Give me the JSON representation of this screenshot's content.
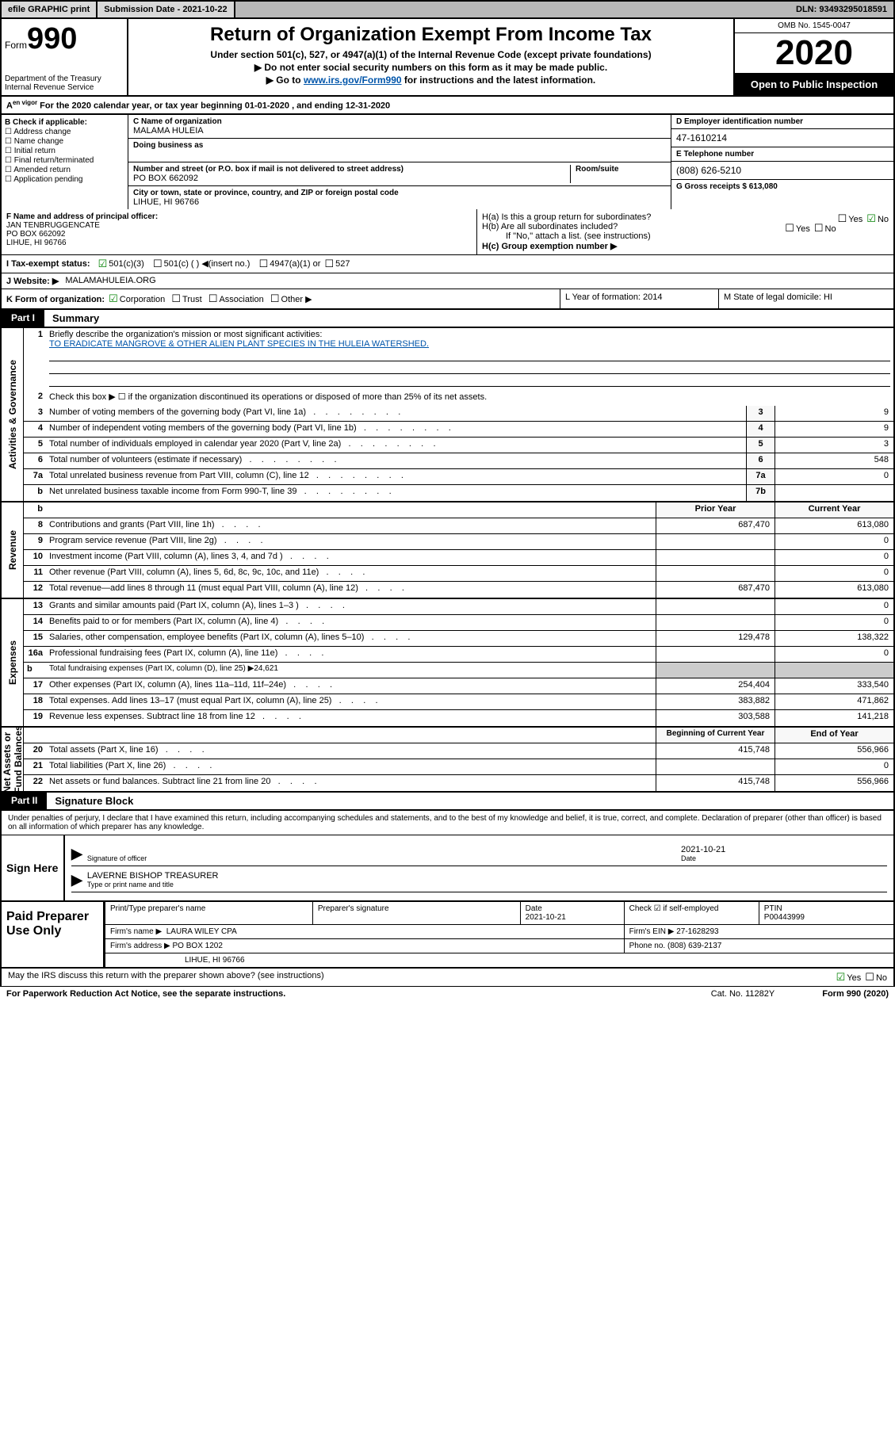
{
  "topbar": {
    "efile": "efile GRAPHIC print",
    "sub_label": "Submission Date - 2021-10-22",
    "dln": "DLN: 93493295018591"
  },
  "header": {
    "form_prefix": "Form",
    "form_num": "990",
    "dept": "Department of the Treasury\nInternal Revenue Service",
    "title": "Return of Organization Exempt From Income Tax",
    "subtitle": "Under section 501(c), 527, or 4947(a)(1) of the Internal Revenue Code (except private foundations)",
    "note1": "Do not enter social security numbers on this form as it may be made public.",
    "note2_pre": "Go to ",
    "note2_link": "www.irs.gov/Form990",
    "note2_post": " for instructions and the latest information.",
    "omb": "OMB No. 1545-0047",
    "year": "2020",
    "inspection": "Open to Public Inspection"
  },
  "tax_year_line": "For the 2020 calendar year, or tax year beginning 01-01-2020   , and ending 12-31-2020",
  "box_b": {
    "hdr": "B Check if applicable:",
    "opts": [
      "Address change",
      "Name change",
      "Initial return",
      "Final return/terminated",
      "Amended return",
      "Application pending"
    ]
  },
  "box_c": {
    "name_hdr": "C Name of organization",
    "name": "MALAMA HULEIA",
    "dba_hdr": "Doing business as",
    "street_hdr": "Number and street (or P.O. box if mail is not delivered to street address)",
    "street": "PO BOX 662092",
    "room_hdr": "Room/suite",
    "city_hdr": "City or town, state or province, country, and ZIP or foreign postal code",
    "city": "LIHUE, HI  96766"
  },
  "box_d": {
    "ein_hdr": "D Employer identification number",
    "ein": "47-1610214",
    "phone_hdr": "E Telephone number",
    "phone": "(808) 626-5210",
    "gross_hdr": "G Gross receipts $ 613,080"
  },
  "box_f": {
    "hdr": "F  Name and address of principal officer:",
    "name": "JAN TENBRUGGENCATE",
    "addr1": "PO BOX 662092",
    "addr2": "LIHUE, HI  96766"
  },
  "box_h": {
    "ha_label": "H(a)  Is this a group return for subordinates?",
    "hb_label": "H(b)  Are all subordinates included?",
    "hb_note": "If \"No,\" attach a list. (see instructions)",
    "hc_label": "H(c)  Group exemption number ▶"
  },
  "row_i": {
    "lbl": "I  Tax-exempt status:",
    "opts": [
      "501(c)(3)",
      "501(c) (  ) ◀(insert no.)",
      "4947(a)(1) or",
      "527"
    ]
  },
  "row_j": {
    "lbl": "J  Website: ▶",
    "val": "MALAMAHULEIA.ORG"
  },
  "klm": {
    "k_lbl": "K Form of organization:",
    "k_opts": [
      "Corporation",
      "Trust",
      "Association",
      "Other ▶"
    ],
    "l": "L Year of formation: 2014",
    "m": "M State of legal domicile: HI"
  },
  "part1": {
    "tag": "Part I",
    "title": "Summary",
    "mission_lbl": "Briefly describe the organization's mission or most significant activities:",
    "mission": "TO ERADICATE MANGROVE & OTHER ALIEN PLANT SPECIES IN THE HULEIA WATERSHED.",
    "line2": "Check this box ▶ ☐  if the organization discontinued its operations or disposed of more than 25% of its net assets."
  },
  "gov_lines": [
    {
      "n": "3",
      "d": "Number of voting members of the governing body (Part VI, line 1a)",
      "box": "3",
      "v": "9"
    },
    {
      "n": "4",
      "d": "Number of independent voting members of the governing body (Part VI, line 1b)",
      "box": "4",
      "v": "9"
    },
    {
      "n": "5",
      "d": "Total number of individuals employed in calendar year 2020 (Part V, line 2a)",
      "box": "5",
      "v": "3"
    },
    {
      "n": "6",
      "d": "Total number of volunteers (estimate if necessary)",
      "box": "6",
      "v": "548"
    },
    {
      "n": "7a",
      "d": "Total unrelated business revenue from Part VIII, column (C), line 12",
      "box": "7a",
      "v": "0"
    },
    {
      "n": "b",
      "d": "Net unrelated business taxable income from Form 990-T, line 39",
      "box": "7b",
      "v": ""
    }
  ],
  "two_col_hdr": {
    "prior": "Prior Year",
    "current": "Current Year"
  },
  "revenue": [
    {
      "n": "8",
      "d": "Contributions and grants (Part VIII, line 1h)",
      "p": "687,470",
      "c": "613,080"
    },
    {
      "n": "9",
      "d": "Program service revenue (Part VIII, line 2g)",
      "p": "",
      "c": "0"
    },
    {
      "n": "10",
      "d": "Investment income (Part VIII, column (A), lines 3, 4, and 7d )",
      "p": "",
      "c": "0"
    },
    {
      "n": "11",
      "d": "Other revenue (Part VIII, column (A), lines 5, 6d, 8c, 9c, 10c, and 11e)",
      "p": "",
      "c": "0"
    },
    {
      "n": "12",
      "d": "Total revenue—add lines 8 through 11 (must equal Part VIII, column (A), line 12)",
      "p": "687,470",
      "c": "613,080"
    }
  ],
  "expenses": [
    {
      "n": "13",
      "d": "Grants and similar amounts paid (Part IX, column (A), lines 1–3 )",
      "p": "",
      "c": "0"
    },
    {
      "n": "14",
      "d": "Benefits paid to or for members (Part IX, column (A), line 4)",
      "p": "",
      "c": "0"
    },
    {
      "n": "15",
      "d": "Salaries, other compensation, employee benefits (Part IX, column (A), lines 5–10)",
      "p": "129,478",
      "c": "138,322"
    },
    {
      "n": "16a",
      "d": "Professional fundraising fees (Part IX, column (A), line 11e)",
      "p": "",
      "c": "0"
    },
    {
      "n": "b",
      "d": "Total fundraising expenses (Part IX, column (D), line 25) ▶24,621",
      "p": null,
      "c": null
    },
    {
      "n": "17",
      "d": "Other expenses (Part IX, column (A), lines 11a–11d, 11f–24e)",
      "p": "254,404",
      "c": "333,540"
    },
    {
      "n": "18",
      "d": "Total expenses. Add lines 13–17 (must equal Part IX, column (A), line 25)",
      "p": "383,882",
      "c": "471,862"
    },
    {
      "n": "19",
      "d": "Revenue less expenses. Subtract line 18 from line 12",
      "p": "303,588",
      "c": "141,218"
    }
  ],
  "net_hdr": {
    "begin": "Beginning of Current Year",
    "end": "End of Year"
  },
  "net": [
    {
      "n": "20",
      "d": "Total assets (Part X, line 16)",
      "p": "415,748",
      "c": "556,966"
    },
    {
      "n": "21",
      "d": "Total liabilities (Part X, line 26)",
      "p": "",
      "c": "0"
    },
    {
      "n": "22",
      "d": "Net assets or fund balances. Subtract line 21 from line 20",
      "p": "415,748",
      "c": "556,966"
    }
  ],
  "part2": {
    "tag": "Part II",
    "title": "Signature Block",
    "penalty": "Under penalties of perjury, I declare that I have examined this return, including accompanying schedules and statements, and to the best of my knowledge and belief, it is true, correct, and complete. Declaration of preparer (other than officer) is based on all information of which preparer has any knowledge."
  },
  "sign": {
    "label": "Sign Here",
    "officer": "Signature of officer",
    "date": "2021-10-21",
    "date_lbl": "Date",
    "name": "LAVERNE BISHOP TREASURER",
    "type_lbl": "Type or print name and title"
  },
  "prep": {
    "label": "Paid Preparer Use Only",
    "h1": "Print/Type preparer's name",
    "h2": "Preparer's signature",
    "h3": "Date",
    "h3v": "2021-10-21",
    "h4": "Check ☑ if self-employed",
    "h5": "PTIN",
    "h5v": "P00443999",
    "firm_lbl": "Firm's name    ▶",
    "firm": "LAURA WILEY CPA",
    "ein_lbl": "Firm's EIN ▶",
    "ein": "27-1628293",
    "addr_lbl": "Firm's address ▶",
    "addr1": "PO BOX 1202",
    "addr2": "LIHUE, HI  96766",
    "phone_lbl": "Phone no.",
    "phone": "(808) 639-2137"
  },
  "discuss": "May the IRS discuss this return with the preparer shown above? (see instructions)",
  "footer": {
    "pra": "For Paperwork Reduction Act Notice, see the separate instructions.",
    "cat": "Cat. No. 11282Y",
    "ver": "Form 990 (2020)"
  },
  "colors": {
    "link": "#0055aa",
    "check": "#008000",
    "topbar_bg": "#b8b8b8"
  }
}
